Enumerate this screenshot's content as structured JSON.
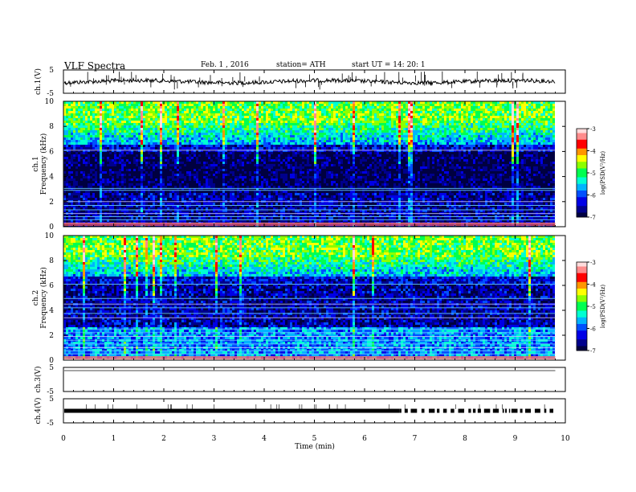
{
  "header": {
    "title": "VLF  Spectra",
    "date": "Feb. 1  , 2016",
    "station": "station= ATH",
    "start": "start  UT  =    14: 20: 1"
  },
  "chart_data": [
    {
      "type": "line",
      "id": "ch1",
      "ylabel": "ch.1(V)",
      "yticks": [
        "5",
        "-5"
      ],
      "ylim": [
        -5,
        5
      ],
      "xlim": [
        0,
        10
      ],
      "data_extent_min": 9.8,
      "baseline": 0,
      "style": "continuous-noise"
    },
    {
      "type": "heatmap",
      "id": "ch1-spectrogram",
      "ylabel_top": "ch.1",
      "ylabel": "Frequency  (kHz)",
      "yticks": [
        "10",
        "8",
        "6",
        "4",
        "2",
        "0"
      ],
      "ylim": [
        0,
        10
      ],
      "xlim": [
        0,
        10
      ],
      "data_extent_min": 9.8,
      "colorbar": {
        "label": "log(PSD(V²/Hz)",
        "ticks": [
          "-3",
          "-4",
          "-5",
          "-6",
          "-7"
        ],
        "range": [
          -7,
          -3
        ]
      }
    },
    {
      "type": "heatmap",
      "id": "ch2-spectrogram",
      "ylabel_top": "ch.2",
      "ylabel": "Frequency  (kHz)",
      "yticks": [
        "10",
        "8",
        "6",
        "4",
        "2",
        "0"
      ],
      "ylim": [
        0,
        10
      ],
      "xlim": [
        0,
        10
      ],
      "data_extent_min": 9.8,
      "colorbar": {
        "label": "log(PSD(V²/Hz)",
        "ticks": [
          "-3",
          "-4",
          "-5",
          "-6",
          "-7"
        ],
        "range": [
          -7,
          -3
        ]
      }
    },
    {
      "type": "line",
      "id": "ch3",
      "ylabel": "ch.3(V)",
      "yticks": [
        "5",
        "-5"
      ],
      "ylim": [
        -5,
        5
      ],
      "xlim": [
        0,
        10
      ],
      "data_extent_min": 9.8,
      "baseline": 5,
      "style": "flat"
    },
    {
      "type": "line",
      "id": "ch4",
      "ylabel": "ch.4(V)",
      "yticks": [
        "5",
        "-5"
      ],
      "ylim": [
        -5,
        5
      ],
      "xlim": [
        0,
        10
      ],
      "data_extent_min": 9.8,
      "baseline": 0,
      "style": "thick-pulses"
    }
  ],
  "xaxis": {
    "label": "Time  (min)",
    "ticks": [
      "0",
      "1",
      "2",
      "3",
      "4",
      "5",
      "6",
      "7",
      "8",
      "9",
      "10"
    ]
  },
  "colors": {
    "colormap": [
      "#000040",
      "#00008c",
      "#0000e6",
      "#0050ff",
      "#00b4ff",
      "#00ffd2",
      "#00ff50",
      "#8cff00",
      "#ffff00",
      "#ff9600",
      "#ff0000",
      "#ff8c8c",
      "#ffdcdc"
    ]
  }
}
